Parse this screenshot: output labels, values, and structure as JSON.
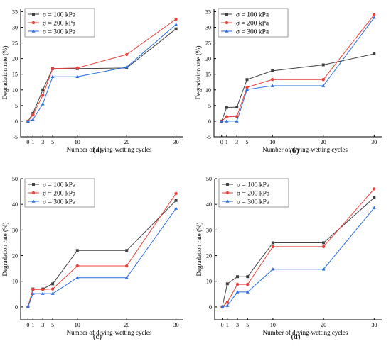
{
  "chart_data": [
    {
      "type": "line",
      "panel_label": "(a)",
      "xlabel": "Number of drying-wetting cycles",
      "ylabel": "Degradation rate (%)",
      "x": [
        0,
        1,
        3,
        5,
        10,
        20,
        30
      ],
      "xticks": [
        0,
        1,
        3,
        5,
        10,
        20,
        30
      ],
      "ylim": [
        -5,
        36
      ],
      "yticks": [
        -5,
        0,
        5,
        10,
        15,
        20,
        25,
        30,
        35
      ],
      "legend": "top-left",
      "series": [
        {
          "name": "σ = 100 kPa",
          "color": "#404040",
          "marker": "square",
          "values": [
            0,
            2.5,
            10.0,
            16.8,
            16.8,
            17.0,
            29.5
          ]
        },
        {
          "name": "σ = 200 kPa",
          "color": "#e8403a",
          "marker": "circle",
          "values": [
            0,
            2.0,
            8.3,
            16.8,
            17.0,
            21.3,
            32.6
          ]
        },
        {
          "name": "σ = 300 kPa",
          "color": "#2a6fdb",
          "marker": "triangle",
          "values": [
            0,
            0.5,
            5.5,
            14.2,
            14.2,
            17.3,
            30.9
          ]
        }
      ]
    },
    {
      "type": "line",
      "panel_label": "(b)",
      "xlabel": "Number of drying-wetting cycles",
      "ylabel": "Degradation rate (%)",
      "x": [
        0,
        1,
        3,
        5,
        10,
        20,
        30
      ],
      "xticks": [
        0,
        1,
        3,
        5,
        10,
        20,
        30
      ],
      "ylim": [
        -5,
        36
      ],
      "yticks": [
        -5,
        0,
        5,
        10,
        15,
        20,
        25,
        30,
        35
      ],
      "legend": "top-left",
      "series": [
        {
          "name": "σ = 100 kPa",
          "color": "#404040",
          "marker": "square",
          "values": [
            0,
            4.4,
            4.5,
            13.3,
            16.1,
            18.0,
            21.5
          ]
        },
        {
          "name": "σ = 200 kPa",
          "color": "#e8403a",
          "marker": "circle",
          "values": [
            0,
            1.4,
            1.5,
            10.8,
            13.3,
            13.3,
            34.0
          ]
        },
        {
          "name": "σ = 300 kPa",
          "color": "#2a6fdb",
          "marker": "triangle",
          "values": [
            0,
            0,
            0,
            10.1,
            11.3,
            11.3,
            33.1
          ]
        }
      ]
    },
    {
      "type": "line",
      "panel_label": "(c)",
      "xlabel": "Number of drying-wetting cycles",
      "ylabel": "Degradation rate (%)",
      "x": [
        0,
        1,
        3,
        5,
        10,
        20,
        30
      ],
      "xticks": [
        0,
        1,
        3,
        5,
        10,
        20,
        30
      ],
      "ylim": [
        -5,
        50
      ],
      "yticks": [
        0,
        10,
        20,
        30,
        40,
        50
      ],
      "legend": "top-left",
      "series": [
        {
          "name": "σ = 100 kPa",
          "color": "#404040",
          "marker": "square",
          "values": [
            0,
            7.0,
            7.0,
            9.0,
            22.0,
            22.0,
            41.5
          ]
        },
        {
          "name": "σ = 200 kPa",
          "color": "#e8403a",
          "marker": "circle",
          "values": [
            0,
            6.8,
            6.8,
            7.0,
            16.0,
            16.0,
            44.2
          ]
        },
        {
          "name": "σ = 300 kPa",
          "color": "#2a6fdb",
          "marker": "triangle",
          "values": [
            0,
            5.2,
            5.2,
            5.2,
            11.4,
            11.4,
            38.4
          ]
        }
      ]
    },
    {
      "type": "line",
      "panel_label": "(d)",
      "xlabel": "Number of drying-wetting cycles",
      "ylabel": "Degradation rate (%)",
      "x": [
        0,
        1,
        3,
        5,
        10,
        20,
        30
      ],
      "xticks": [
        0,
        1,
        3,
        5,
        10,
        20,
        30
      ],
      "ylim": [
        -5,
        50
      ],
      "yticks": [
        0,
        10,
        20,
        30,
        40,
        50
      ],
      "legend": "top-left",
      "series": [
        {
          "name": "σ = 100 kPa",
          "color": "#404040",
          "marker": "square",
          "values": [
            0,
            9.0,
            11.8,
            11.8,
            25.0,
            25.0,
            42.6
          ]
        },
        {
          "name": "σ = 200 kPa",
          "color": "#e8403a",
          "marker": "circle",
          "values": [
            0,
            1.8,
            8.8,
            8.8,
            23.5,
            23.5,
            46.0
          ]
        },
        {
          "name": "σ = 300 kPa",
          "color": "#2a6fdb",
          "marker": "triangle",
          "values": [
            0,
            0.5,
            5.8,
            5.8,
            14.7,
            14.7,
            38.6
          ]
        }
      ]
    }
  ]
}
